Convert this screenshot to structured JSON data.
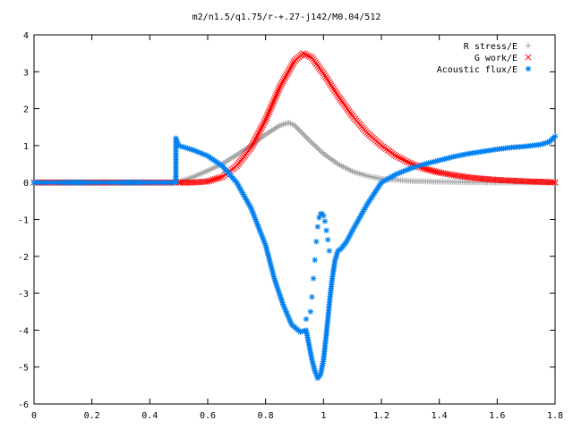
{
  "chart_data": {
    "type": "scatter",
    "title": "m2/n1.5/q1.75/r-+.27-j142/M0.04/512",
    "xlabel": "",
    "ylabel": "",
    "xlim": [
      0,
      1.8
    ],
    "ylim": [
      -6,
      4
    ],
    "x_ticks": [
      "0",
      "0.2",
      "0.4",
      "0.6",
      "0.8",
      "1",
      "1.2",
      "1.4",
      "1.6",
      "1.8"
    ],
    "y_ticks": [
      "4",
      "3",
      "2",
      "1",
      "0",
      "-1",
      "-2",
      "-3",
      "-4",
      "-5",
      "-6"
    ],
    "grid": false,
    "legend_position": "top-right",
    "series": [
      {
        "name": "R stress/E",
        "marker": "+",
        "color": "#a0a0a0",
        "points": [
          [
            0,
            0
          ],
          [
            0.1,
            0
          ],
          [
            0.2,
            0
          ],
          [
            0.3,
            0
          ],
          [
            0.4,
            0
          ],
          [
            0.49,
            0
          ],
          [
            0.5,
            0.02
          ],
          [
            0.55,
            0.15
          ],
          [
            0.6,
            0.32
          ],
          [
            0.65,
            0.5
          ],
          [
            0.7,
            0.75
          ],
          [
            0.75,
            1.0
          ],
          [
            0.8,
            1.3
          ],
          [
            0.85,
            1.55
          ],
          [
            0.88,
            1.62
          ],
          [
            0.9,
            1.55
          ],
          [
            0.95,
            1.15
          ],
          [
            1.0,
            0.78
          ],
          [
            1.05,
            0.5
          ],
          [
            1.1,
            0.3
          ],
          [
            1.15,
            0.18
          ],
          [
            1.2,
            0.1
          ],
          [
            1.3,
            0.04
          ],
          [
            1.4,
            0.02
          ],
          [
            1.5,
            0.01
          ],
          [
            1.6,
            0.0
          ],
          [
            1.7,
            0.0
          ],
          [
            1.8,
            0.0
          ]
        ]
      },
      {
        "name": "G work/E",
        "marker": "x",
        "color": "#ff0000",
        "points": [
          [
            0,
            0
          ],
          [
            0.1,
            0
          ],
          [
            0.2,
            0
          ],
          [
            0.3,
            0
          ],
          [
            0.4,
            0
          ],
          [
            0.49,
            0
          ],
          [
            0.5,
            0.0
          ],
          [
            0.55,
            0.0
          ],
          [
            0.6,
            0.03
          ],
          [
            0.65,
            0.15
          ],
          [
            0.7,
            0.45
          ],
          [
            0.75,
            0.95
          ],
          [
            0.8,
            1.7
          ],
          [
            0.85,
            2.6
          ],
          [
            0.9,
            3.3
          ],
          [
            0.93,
            3.5
          ],
          [
            0.96,
            3.38
          ],
          [
            1.0,
            2.95
          ],
          [
            1.05,
            2.35
          ],
          [
            1.1,
            1.8
          ],
          [
            1.15,
            1.35
          ],
          [
            1.2,
            1.0
          ],
          [
            1.25,
            0.72
          ],
          [
            1.3,
            0.52
          ],
          [
            1.35,
            0.37
          ],
          [
            1.4,
            0.27
          ],
          [
            1.45,
            0.2
          ],
          [
            1.5,
            0.14
          ],
          [
            1.55,
            0.1
          ],
          [
            1.6,
            0.07
          ],
          [
            1.65,
            0.05
          ],
          [
            1.7,
            0.03
          ],
          [
            1.75,
            0.02
          ],
          [
            1.8,
            0.0
          ]
        ]
      },
      {
        "name": "Acoustic flux/E",
        "marker": "*",
        "color": "#0080f0",
        "points": [
          [
            0,
            0
          ],
          [
            0.1,
            0
          ],
          [
            0.2,
            0
          ],
          [
            0.3,
            0
          ],
          [
            0.4,
            0
          ],
          [
            0.49,
            0
          ],
          [
            0.49,
            1.2
          ],
          [
            0.5,
            1.0
          ],
          [
            0.55,
            0.88
          ],
          [
            0.6,
            0.72
          ],
          [
            0.65,
            0.45
          ],
          [
            0.7,
            0.0
          ],
          [
            0.75,
            -0.7
          ],
          [
            0.8,
            -1.7
          ],
          [
            0.83,
            -2.6
          ],
          [
            0.86,
            -3.3
          ],
          [
            0.89,
            -3.85
          ],
          [
            0.92,
            -4.05
          ],
          [
            0.94,
            -4.0
          ],
          [
            0.95,
            -4.4
          ],
          [
            0.96,
            -4.8
          ],
          [
            0.97,
            -5.1
          ],
          [
            0.98,
            -5.3
          ],
          [
            0.99,
            -5.2
          ],
          [
            1.0,
            -4.8
          ],
          [
            1.01,
            -4.1
          ],
          [
            1.02,
            -3.3
          ],
          [
            1.03,
            -2.6
          ],
          [
            1.04,
            -2.1
          ],
          [
            1.05,
            -1.85
          ],
          [
            1.06,
            -1.8
          ],
          [
            1.08,
            -1.6
          ],
          [
            1.1,
            -1.3
          ],
          [
            1.15,
            -0.6
          ],
          [
            1.2,
            0.0
          ],
          [
            1.25,
            0.22
          ],
          [
            1.3,
            0.38
          ],
          [
            1.35,
            0.5
          ],
          [
            1.4,
            0.6
          ],
          [
            1.45,
            0.7
          ],
          [
            1.5,
            0.78
          ],
          [
            1.55,
            0.84
          ],
          [
            1.6,
            0.9
          ],
          [
            1.65,
            0.95
          ],
          [
            1.7,
            0.98
          ],
          [
            1.75,
            1.03
          ],
          [
            1.78,
            1.1
          ],
          [
            1.8,
            1.25
          ]
        ],
        "extra_points": [
          [
            0.94,
            -3.7
          ],
          [
            0.955,
            -3.5
          ],
          [
            0.96,
            -3.1
          ],
          [
            0.965,
            -2.6
          ],
          [
            0.97,
            -2.1
          ],
          [
            0.975,
            -1.6
          ],
          [
            0.98,
            -1.2
          ],
          [
            0.985,
            -0.95
          ],
          [
            0.99,
            -0.85
          ],
          [
            0.995,
            -0.85
          ],
          [
            1.0,
            -0.9
          ],
          [
            1.005,
            -1.05
          ],
          [
            1.01,
            -1.3
          ],
          [
            1.015,
            -1.55
          ],
          [
            1.02,
            -1.85
          ]
        ]
      }
    ]
  }
}
